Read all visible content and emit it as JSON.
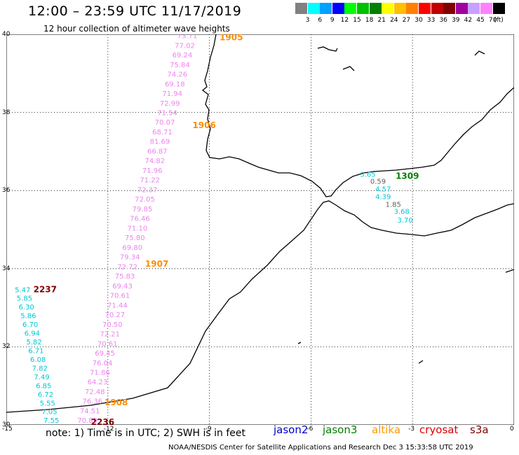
{
  "header": {
    "title": "12:00 – 23:59 UTC 11/17/2019",
    "subtitle": "12 hour collection of altimeter wave heights"
  },
  "legend_scale": {
    "unit": "(ft)",
    "entries": [
      {
        "label": "3",
        "color": "#808080"
      },
      {
        "label": "6",
        "color": "#00ffff"
      },
      {
        "label": "9",
        "color": "#00a0ff"
      },
      {
        "label": "12",
        "color": "#0000ff"
      },
      {
        "label": "15",
        "color": "#00ff00"
      },
      {
        "label": "18",
        "color": "#00c000"
      },
      {
        "label": "21",
        "color": "#008000"
      },
      {
        "label": "24",
        "color": "#ffff00"
      },
      {
        "label": "27",
        "color": "#ffc000"
      },
      {
        "label": "30",
        "color": "#ff8000"
      },
      {
        "label": "33",
        "color": "#ff0000"
      },
      {
        "label": "36",
        "color": "#c00000"
      },
      {
        "label": "39",
        "color": "#800000"
      },
      {
        "label": "42",
        "color": "#a000a0"
      },
      {
        "label": "45",
        "color": "#c8a0ff"
      },
      {
        "label": "70",
        "color": "#ff80ff"
      },
      {
        "label": "",
        "color": "#000000"
      }
    ]
  },
  "map": {
    "lon_range": [
      -15,
      0
    ],
    "lat_range": [
      30,
      40
    ],
    "lon_ticks": [
      "-15",
      "-12",
      "-9",
      "-6",
      "-3",
      "0"
    ],
    "lat_ticks": [
      "40",
      "38",
      "36",
      "34",
      "32",
      "30"
    ],
    "time_labels": [
      {
        "text": "1905",
        "lon": -8.7,
        "lat": 39.85,
        "color": "#ff8c00"
      },
      {
        "text": "1906",
        "lon": -9.5,
        "lat": 37.6,
        "color": "#ff8c00"
      },
      {
        "text": "1907",
        "lon": -10.9,
        "lat": 34.05,
        "color": "#ff8c00"
      },
      {
        "text": "1908",
        "lon": -12.1,
        "lat": 30.5,
        "color": "#ff8c00"
      },
      {
        "text": "2237",
        "lon": -14.2,
        "lat": 33.4,
        "color": "#800000"
      },
      {
        "text": "2236",
        "lon": -12.5,
        "lat": 30.0,
        "color": "#800000"
      },
      {
        "text": "1309",
        "lon": -3.5,
        "lat": 36.3,
        "color": "#008000"
      }
    ],
    "wave_tracks": [
      {
        "color": "#ee82ee",
        "values": [
          "73.71",
          "77.02",
          "69.24",
          "75.84",
          "74.26",
          "69.18",
          "71.94",
          "72.99",
          "71.54",
          "70.07",
          "68.71",
          "81.69",
          "66.87",
          "74.82",
          "71.96",
          "71.22",
          "72.37",
          "72.05",
          "79.85",
          "76.46",
          "71.10",
          "75.80",
          "69.80",
          "79.34",
          "72.72",
          "75.83",
          "69.43",
          "70.61",
          "71.44",
          "70.27",
          "70.50",
          "72.21",
          "70.61",
          "69.45",
          "76.04",
          "71.86",
          "64.23",
          "72.48",
          "76.36",
          "74.51",
          "70.89"
        ],
        "start": [
          -9.95,
          39.9
        ],
        "end": [
          -12.9,
          30.05
        ]
      },
      {
        "color": "#00c8d2",
        "values": [
          "5.47",
          "5.85",
          "6.30",
          "5.86",
          "6.70",
          "6.94",
          "5.82",
          "6.71",
          "6.08",
          "7.82",
          "7.49",
          "6.85",
          "6.72",
          "5.55",
          "7.05",
          "7.55"
        ],
        "start": [
          -14.75,
          33.4
        ],
        "end": [
          -13.9,
          30.05
        ]
      },
      {
        "color": "#00c8d2",
        "values": [
          "3.65"
        ],
        "start": [
          -4.55,
          36.35
        ],
        "end": [
          -4.55,
          36.35
        ]
      },
      {
        "color": "#606060",
        "values": [
          "0.59"
        ],
        "start": [
          -4.25,
          36.17
        ],
        "end": [
          -4.25,
          36.17
        ]
      },
      {
        "color": "#00c8d2",
        "values": [
          "4.57",
          "4.39"
        ],
        "start": [
          -4.1,
          35.98
        ],
        "end": [
          -4.1,
          35.78
        ]
      },
      {
        "color": "#606060",
        "values": [
          "1.85"
        ],
        "start": [
          -3.8,
          35.58
        ],
        "end": [
          -3.8,
          35.58
        ]
      },
      {
        "color": "#00c8d2",
        "values": [
          "3.68",
          "3.70"
        ],
        "start": [
          -3.55,
          35.4
        ],
        "end": [
          -3.45,
          35.18
        ]
      }
    ]
  },
  "footer": {
    "note": "note:  1) Time is in UTC;  2) SWH is in feet",
    "satellites": [
      {
        "name": "jason2",
        "color": "#0000c8"
      },
      {
        "name": "jason3",
        "color": "#008000"
      },
      {
        "name": "altika",
        "color": "#ff9900"
      },
      {
        "name": "cryosat",
        "color": "#dd0000"
      },
      {
        "name": "s3a",
        "color": "#800000"
      }
    ],
    "credit": "NOAA/NESDIS Center for Satellite Applications and Research    Dec  3 15:33:58 UTC 2019"
  }
}
